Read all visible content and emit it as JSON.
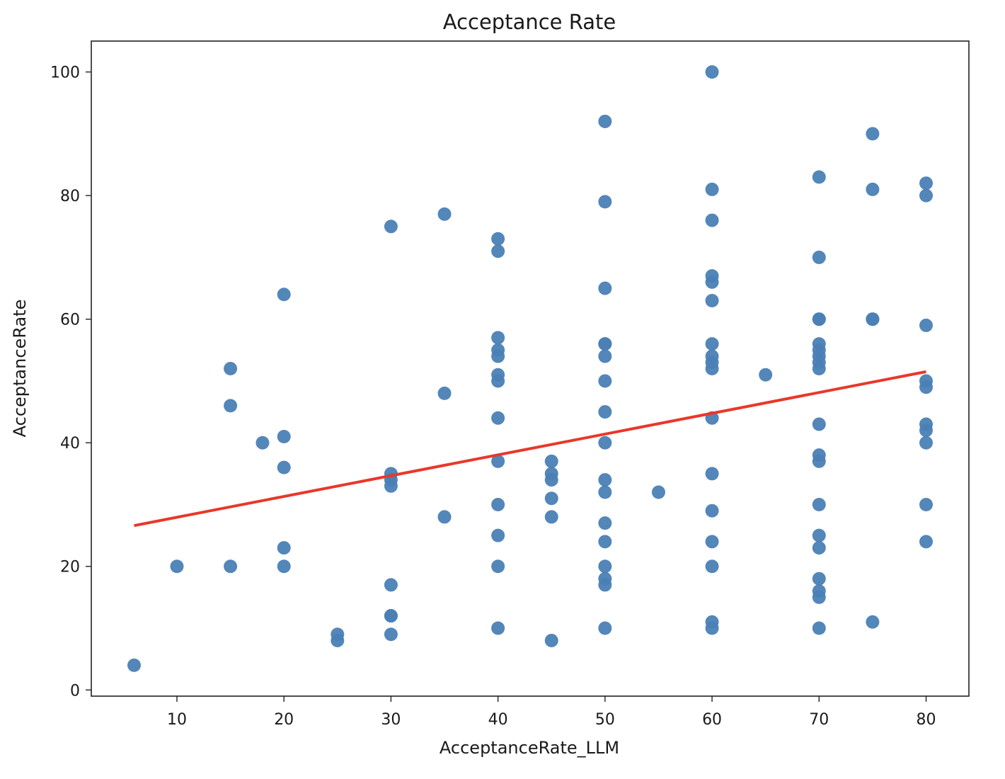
{
  "chart_data": {
    "type": "scatter",
    "title": "Acceptance Rate",
    "xlabel": "AcceptanceRate_LLM",
    "ylabel": "AcceptanceRate",
    "xlim": [
      2,
      84
    ],
    "ylim": [
      -1,
      105
    ],
    "xticks": [
      10,
      20,
      30,
      40,
      50,
      60,
      70,
      80
    ],
    "yticks": [
      0,
      20,
      40,
      60,
      80,
      100
    ],
    "grid": false,
    "legend": "none",
    "colors": {
      "points": "#4a7fb5",
      "trend_line": "#e8382b",
      "frame": "#222222"
    },
    "series": [
      {
        "points": [
          [
            6,
            4
          ],
          [
            10,
            20
          ],
          [
            15,
            52
          ],
          [
            15,
            46
          ],
          [
            15,
            20
          ],
          [
            18,
            40
          ],
          [
            20,
            64
          ],
          [
            20,
            41
          ],
          [
            20,
            36
          ],
          [
            20,
            23
          ],
          [
            20,
            20
          ],
          [
            25,
            9
          ],
          [
            25,
            8
          ],
          [
            30,
            75
          ],
          [
            30,
            35
          ],
          [
            30,
            34
          ],
          [
            30,
            33
          ],
          [
            30,
            17
          ],
          [
            30,
            12
          ],
          [
            30,
            12
          ],
          [
            30,
            9
          ],
          [
            35,
            77
          ],
          [
            35,
            48
          ],
          [
            35,
            28
          ],
          [
            40,
            73
          ],
          [
            40,
            71
          ],
          [
            40,
            57
          ],
          [
            40,
            55
          ],
          [
            40,
            54
          ],
          [
            40,
            51
          ],
          [
            40,
            50
          ],
          [
            40,
            44
          ],
          [
            40,
            37
          ],
          [
            40,
            30
          ],
          [
            40,
            25
          ],
          [
            40,
            20
          ],
          [
            40,
            10
          ],
          [
            45,
            37
          ],
          [
            45,
            35
          ],
          [
            45,
            34
          ],
          [
            45,
            31
          ],
          [
            45,
            28
          ],
          [
            45,
            8
          ],
          [
            50,
            92
          ],
          [
            50,
            79
          ],
          [
            50,
            65
          ],
          [
            50,
            56
          ],
          [
            50,
            56
          ],
          [
            50,
            54
          ],
          [
            50,
            50
          ],
          [
            50,
            45
          ],
          [
            50,
            40
          ],
          [
            50,
            34
          ],
          [
            50,
            32
          ],
          [
            50,
            27
          ],
          [
            50,
            24
          ],
          [
            50,
            20
          ],
          [
            50,
            18
          ],
          [
            50,
            17
          ],
          [
            50,
            10
          ],
          [
            55,
            32
          ],
          [
            60,
            100
          ],
          [
            60,
            81
          ],
          [
            60,
            76
          ],
          [
            60,
            67
          ],
          [
            60,
            66
          ],
          [
            60,
            63
          ],
          [
            60,
            56
          ],
          [
            60,
            54
          ],
          [
            60,
            53
          ],
          [
            60,
            52
          ],
          [
            60,
            44
          ],
          [
            60,
            35
          ],
          [
            60,
            29
          ],
          [
            60,
            24
          ],
          [
            60,
            20
          ],
          [
            60,
            11
          ],
          [
            60,
            10
          ],
          [
            65,
            51
          ],
          [
            70,
            83
          ],
          [
            70,
            70
          ],
          [
            70,
            60
          ],
          [
            70,
            60
          ],
          [
            70,
            56
          ],
          [
            70,
            55
          ],
          [
            70,
            54
          ],
          [
            70,
            53
          ],
          [
            70,
            52
          ],
          [
            70,
            43
          ],
          [
            70,
            38
          ],
          [
            70,
            37
          ],
          [
            70,
            30
          ],
          [
            70,
            25
          ],
          [
            70,
            23
          ],
          [
            70,
            18
          ],
          [
            70,
            16
          ],
          [
            70,
            15
          ],
          [
            70,
            10
          ],
          [
            75,
            90
          ],
          [
            75,
            81
          ],
          [
            75,
            60
          ],
          [
            75,
            60
          ],
          [
            75,
            11
          ],
          [
            80,
            82
          ],
          [
            80,
            80
          ],
          [
            80,
            59
          ],
          [
            80,
            50
          ],
          [
            80,
            49
          ],
          [
            80,
            43
          ],
          [
            80,
            42
          ],
          [
            80,
            40
          ],
          [
            80,
            30
          ],
          [
            80,
            24
          ]
        ]
      }
    ],
    "trend_line": {
      "x": [
        6,
        80
      ],
      "y": [
        26.6,
        51.5
      ]
    }
  }
}
